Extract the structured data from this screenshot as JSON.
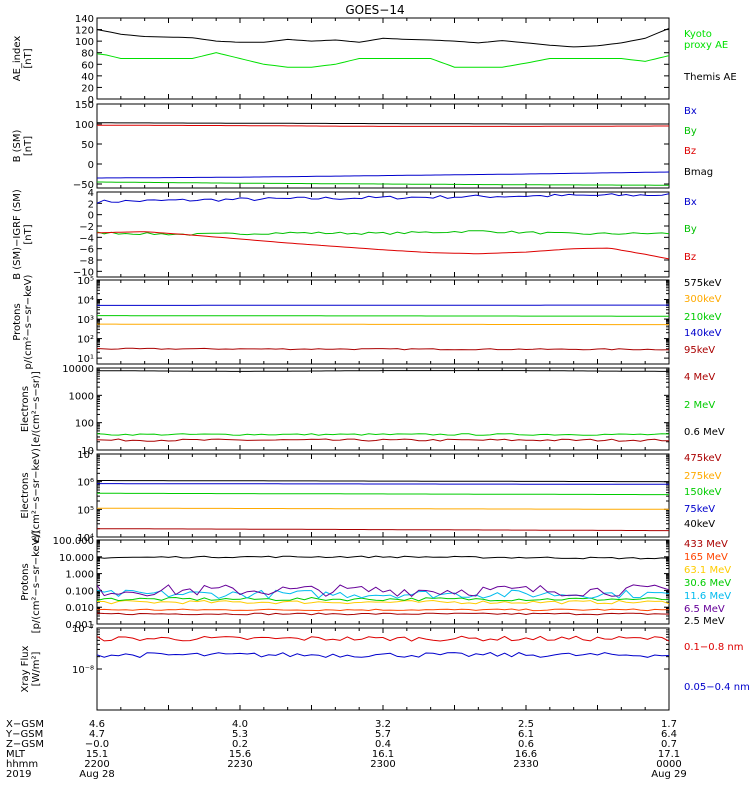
{
  "title": "GOES−14",
  "chart_data": [
    {
      "type": "line",
      "ylabel": [
        "AE_index",
        "[nT]"
      ],
      "ylim": [
        0,
        140
      ],
      "yticks": [
        "0",
        "20",
        "40",
        "60",
        "80",
        "100",
        "120",
        "140"
      ],
      "tick_values": [
        0,
        20,
        40,
        60,
        80,
        100,
        120,
        140
      ],
      "scale": "linear",
      "series": [
        {
          "name": "Kyoto proxy AE",
          "label_lines": [
            "Kyoto",
            "proxy AE"
          ],
          "color": "#00e000",
          "x": [
            0,
            4,
            10,
            20,
            40,
            50,
            60,
            70,
            80,
            90,
            100,
            110,
            120,
            130,
            140,
            150,
            160,
            170,
            180,
            190,
            200,
            210,
            220,
            230,
            240
          ],
          "y": [
            78,
            76,
            70,
            70,
            70,
            80,
            70,
            60,
            55,
            55,
            60,
            70,
            70,
            70,
            70,
            55,
            55,
            55,
            62,
            70,
            70,
            70,
            70,
            65,
            75
          ]
        },
        {
          "name": "Themis AE",
          "label_lines": [
            "Themis AE"
          ],
          "color": "#000000",
          "x": [
            0,
            10,
            20,
            30,
            40,
            50,
            60,
            70,
            80,
            90,
            100,
            110,
            120,
            130,
            140,
            150,
            160,
            170,
            180,
            190,
            200,
            210,
            220,
            230,
            240
          ],
          "y": [
            120,
            112,
            108,
            107,
            106,
            100,
            98,
            98,
            103,
            100,
            102,
            98,
            105,
            103,
            102,
            100,
            97,
            101,
            97,
            93,
            90,
            92,
            97,
            105,
            122
          ]
        }
      ]
    },
    {
      "type": "line",
      "ylabel": [
        "B (SM)",
        "[nT]"
      ],
      "ylim": [
        -60,
        150
      ],
      "yticks": [
        "−50",
        "0",
        "50",
        "100",
        "150"
      ],
      "tick_values": [
        -50,
        0,
        50,
        100,
        150
      ],
      "scale": "linear",
      "series": [
        {
          "name": "Bx",
          "color": "#0000cc",
          "x": [
            0,
            60,
            120,
            180,
            240
          ],
          "y": [
            -35,
            -33,
            -29,
            -25,
            -20
          ]
        },
        {
          "name": "By",
          "color": "#00c000",
          "x": [
            0,
            60,
            120,
            180,
            240
          ],
          "y": [
            -45,
            -48,
            -50,
            -52,
            -53
          ]
        },
        {
          "name": "Bz",
          "color": "#dd0000",
          "x": [
            0,
            60,
            120,
            180,
            240
          ],
          "y": [
            97,
            96,
            94,
            94,
            95
          ]
        },
        {
          "name": "Bmag",
          "color": "#000000",
          "x": [
            0,
            60,
            120,
            180,
            240
          ],
          "y": [
            103,
            102,
            101,
            100,
            100
          ]
        }
      ]
    },
    {
      "type": "line",
      "ylabel": [
        "B (SM)−IGRF (SM)",
        "[nT]"
      ],
      "ylim": [
        -11,
        4
      ],
      "yticks": [
        "4",
        "2",
        "0",
        "−2",
        "−4",
        "−6",
        "−8",
        "−10"
      ],
      "tick_values": [
        4,
        2,
        0,
        -2,
        -4,
        -6,
        -8,
        -10
      ],
      "scale": "linear",
      "series": [
        {
          "name": "Bx",
          "color": "#0000cc",
          "noise": 0.3,
          "x": [
            0,
            60,
            120,
            180,
            240
          ],
          "y": [
            2.3,
            2.7,
            3.0,
            3.3,
            3.5
          ]
        },
        {
          "name": "By",
          "color": "#00c000",
          "noise": 0.2,
          "x": [
            0,
            40,
            80,
            120,
            160,
            200,
            240
          ],
          "y": [
            -3.2,
            -3.5,
            -3.2,
            -3.3,
            -2.9,
            -3.4,
            -3.3
          ]
        },
        {
          "name": "Bz",
          "color": "#dd0000",
          "x": [
            0,
            20,
            40,
            60,
            80,
            100,
            120,
            140,
            160,
            180,
            200,
            215,
            230,
            240
          ],
          "y": [
            -3.2,
            -3.0,
            -3.6,
            -4.3,
            -5.0,
            -5.6,
            -6.2,
            -6.7,
            -6.9,
            -6.6,
            -6.0,
            -5.9,
            -7.0,
            -7.8
          ]
        }
      ]
    },
    {
      "type": "line",
      "ylabel": [
        "Protons",
        "p/(cm²−s−sr−keV)"
      ],
      "ylim": [
        5,
        100000
      ],
      "yticks": [
        "10¹",
        "10²",
        "10³",
        "10⁴",
        "10⁵"
      ],
      "tick_values": [
        10,
        100,
        1000,
        10000,
        100000
      ],
      "scale": "log",
      "series": [
        {
          "name": "575keV",
          "color": "#000000",
          "x": [
            0,
            240
          ],
          "y": [
            100000,
            100000
          ]
        },
        {
          "name": "300keV",
          "color": "#ffaa00",
          "x": [
            0,
            240
          ],
          "y": [
            550,
            520
          ]
        },
        {
          "name": "210keV",
          "color": "#00cc00",
          "x": [
            0,
            240
          ],
          "y": [
            1500,
            1400
          ]
        },
        {
          "name": "140keV",
          "color": "#0000cc",
          "x": [
            0,
            240
          ],
          "y": [
            5000,
            5200
          ]
        },
        {
          "name": "95keV",
          "color": "#aa0000",
          "noise": 0.03,
          "x": [
            0,
            240
          ],
          "y": [
            30,
            28
          ]
        }
      ]
    },
    {
      "type": "line",
      "ylabel": [
        "Electrons",
        "[e/(cm²−s−sr)]"
      ],
      "ylim": [
        10,
        10000
      ],
      "yticks": [
        "10",
        "100",
        "1000",
        "10000"
      ],
      "tick_values": [
        10,
        100,
        1000,
        10000
      ],
      "scale": "log",
      "series": [
        {
          "name": "4 MeV",
          "color": "#aa0000",
          "noise": 0.04,
          "x": [
            0,
            240
          ],
          "y": [
            23,
            23
          ]
        },
        {
          "name": "2 MeV",
          "color": "#00cc00",
          "noise": 0.03,
          "x": [
            0,
            240
          ],
          "y": [
            37,
            37
          ]
        },
        {
          "name": "0.6 MeV",
          "color": "#000000",
          "x": [
            0,
            60,
            120,
            180,
            240
          ],
          "y": [
            8000,
            7500,
            8000,
            8000,
            7500
          ]
        }
      ]
    },
    {
      "type": "line",
      "ylabel": [
        "Electrons",
        "e/(cm²−s−sr−keV)"
      ],
      "ylim": [
        10000,
        10000000
      ],
      "yticks": [
        "10⁴",
        "10⁵",
        "10⁶",
        "10⁷"
      ],
      "tick_values": [
        10000,
        100000,
        1000000,
        10000000
      ],
      "scale": "log",
      "series": [
        {
          "name": "475keV",
          "color": "#aa0000",
          "x": [
            0,
            240
          ],
          "y": [
            20000,
            17000
          ]
        },
        {
          "name": "275keV",
          "color": "#ffaa00",
          "x": [
            0,
            240
          ],
          "y": [
            110000,
            100000
          ]
        },
        {
          "name": "150keV",
          "color": "#00cc00",
          "x": [
            0,
            240
          ],
          "y": [
            380000,
            340000
          ]
        },
        {
          "name": "75keV",
          "color": "#0000cc",
          "x": [
            0,
            240
          ],
          "y": [
            850000,
            800000
          ]
        },
        {
          "name": "40keV",
          "color": "#000000",
          "x": [
            0,
            240
          ],
          "y": [
            1100000,
            1000000
          ]
        }
      ]
    },
    {
      "type": "line",
      "ylabel": [
        "Protons",
        "[p/(cm²−s−sr−keV)]"
      ],
      "ylim": [
        0.001,
        100
      ],
      "yticks": [
        "0.001",
        "0.010",
        "0.100",
        "1.000",
        "10.000",
        "100.000"
      ],
      "tick_values": [
        0.001,
        0.01,
        0.1,
        1,
        10,
        100
      ],
      "scale": "log",
      "series": [
        {
          "name": "433 MeV",
          "color": "#aa0000",
          "noise": 0.05,
          "x": [
            0,
            240
          ],
          "y": [
            0.004,
            0.004
          ]
        },
        {
          "name": "165 MeV",
          "color": "#ff4400",
          "noise": 0.05,
          "x": [
            0,
            240
          ],
          "y": [
            0.007,
            0.007
          ]
        },
        {
          "name": "63.1 MeV",
          "color": "#ffcc00",
          "noise": 0.1,
          "x": [
            0,
            240
          ],
          "y": [
            0.02,
            0.02
          ]
        },
        {
          "name": "30.6 MeV",
          "color": "#00cc00",
          "noise": 0.1,
          "x": [
            0,
            240
          ],
          "y": [
            0.03,
            0.03
          ]
        },
        {
          "name": "11.6 MeV",
          "color": "#00bbee",
          "noise": 0.25,
          "x": [
            0,
            240
          ],
          "y": [
            0.06,
            0.06
          ]
        },
        {
          "name": "6.5 MeV",
          "color": "#660099",
          "noise": 0.35,
          "x": [
            0,
            240
          ],
          "y": [
            0.1,
            0.1
          ]
        },
        {
          "name": "2.5 MeV",
          "color": "#000000",
          "noise": 0.05,
          "x": [
            0,
            60,
            120,
            180,
            240
          ],
          "y": [
            9,
            10,
            10,
            9,
            8
          ]
        }
      ]
    },
    {
      "type": "line",
      "ylabel": [
        "Xray Flux",
        "[W/m²]"
      ],
      "ylim": [
        1e-09,
        1e-07
      ],
      "yticks": [
        "10⁻⁸",
        "10⁻⁷"
      ],
      "tick_values": [
        1e-08,
        1e-07
      ],
      "scale": "log",
      "series": [
        {
          "name": "0.1−0.8 nm",
          "color": "#dd0000",
          "noise": 0.06,
          "x": [
            0,
            240
          ],
          "y": [
            5.5e-08,
            5.5e-08
          ]
        },
        {
          "name": "0.05−0.4 nm",
          "color": "#0000cc",
          "noise": 0.06,
          "x": [
            0,
            240
          ],
          "y": [
            2.2e-08,
            2.2e-08
          ]
        }
      ]
    }
  ],
  "footer": {
    "row_labels": [
      "X−GSM",
      "Y−GSM",
      "Z−GSM",
      "MLT",
      "hhmm",
      "2019"
    ],
    "columns": [
      {
        "x_minutes": 0,
        "values": [
          "4.6",
          "4.7",
          "−0.0",
          "15.1",
          "2200",
          "Aug 28"
        ]
      },
      {
        "x_minutes": 60,
        "values": [
          "4.0",
          "5.3",
          "0.2",
          "15.6",
          "2230",
          ""
        ]
      },
      {
        "x_minutes": 120,
        "values": [
          "3.2",
          "5.7",
          "0.4",
          "16.1",
          "2300",
          ""
        ]
      },
      {
        "x_minutes": 180,
        "values": [
          "2.5",
          "6.1",
          "0.6",
          "16.6",
          "2330",
          ""
        ]
      },
      {
        "x_minutes": 240,
        "values": [
          "1.7",
          "6.4",
          "0.7",
          "17.1",
          "0000",
          "Aug 29"
        ]
      }
    ]
  }
}
